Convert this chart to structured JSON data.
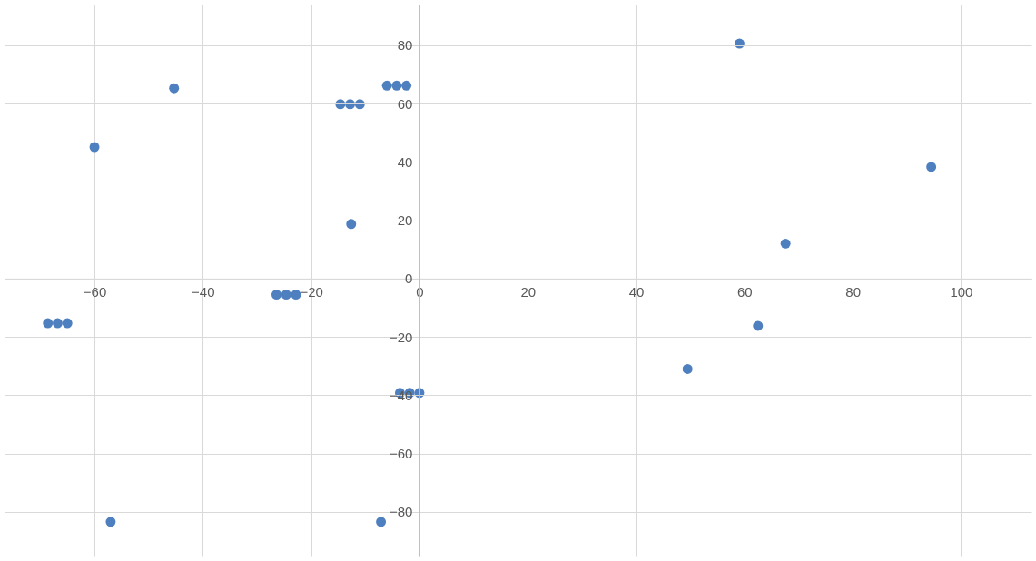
{
  "chart_data": {
    "type": "scatter",
    "marker": "circle",
    "grid": true,
    "legend": false,
    "xlim": [
      -76.6,
      113
    ],
    "ylim": [
      -95.3,
      94
    ],
    "xticks": [
      -60,
      -40,
      -20,
      0,
      20,
      40,
      60,
      80,
      100
    ],
    "yticks": [
      -80,
      -60,
      -40,
      -20,
      0,
      20,
      40,
      60,
      80
    ],
    "series": [
      {
        "color": "#4e7fbf",
        "x": [
          59.1,
          -45.3,
          -60,
          -12.6,
          94.5,
          67.6,
          62.5,
          49.5,
          -57.0,
          -7.1,
          -6.0,
          -4.2,
          -2.4,
          -14.6,
          -12.8,
          -11.0,
          -26.4,
          -24.6,
          -22.8,
          -68.6,
          -66.8,
          -65.0,
          -3.6,
          -1.8,
          0.0
        ],
        "values": [
          80.6,
          65.3,
          45.1,
          18.7,
          38.3,
          12.0,
          -16.2,
          -31.0,
          -83.4,
          -83.4,
          66.2,
          66.2,
          66.2,
          59.8,
          59.8,
          59.8,
          -5.5,
          -5.5,
          -5.5,
          -15.3,
          -15.3,
          -15.3,
          -39.2,
          -39.2,
          -39.2
        ]
      }
    ]
  }
}
